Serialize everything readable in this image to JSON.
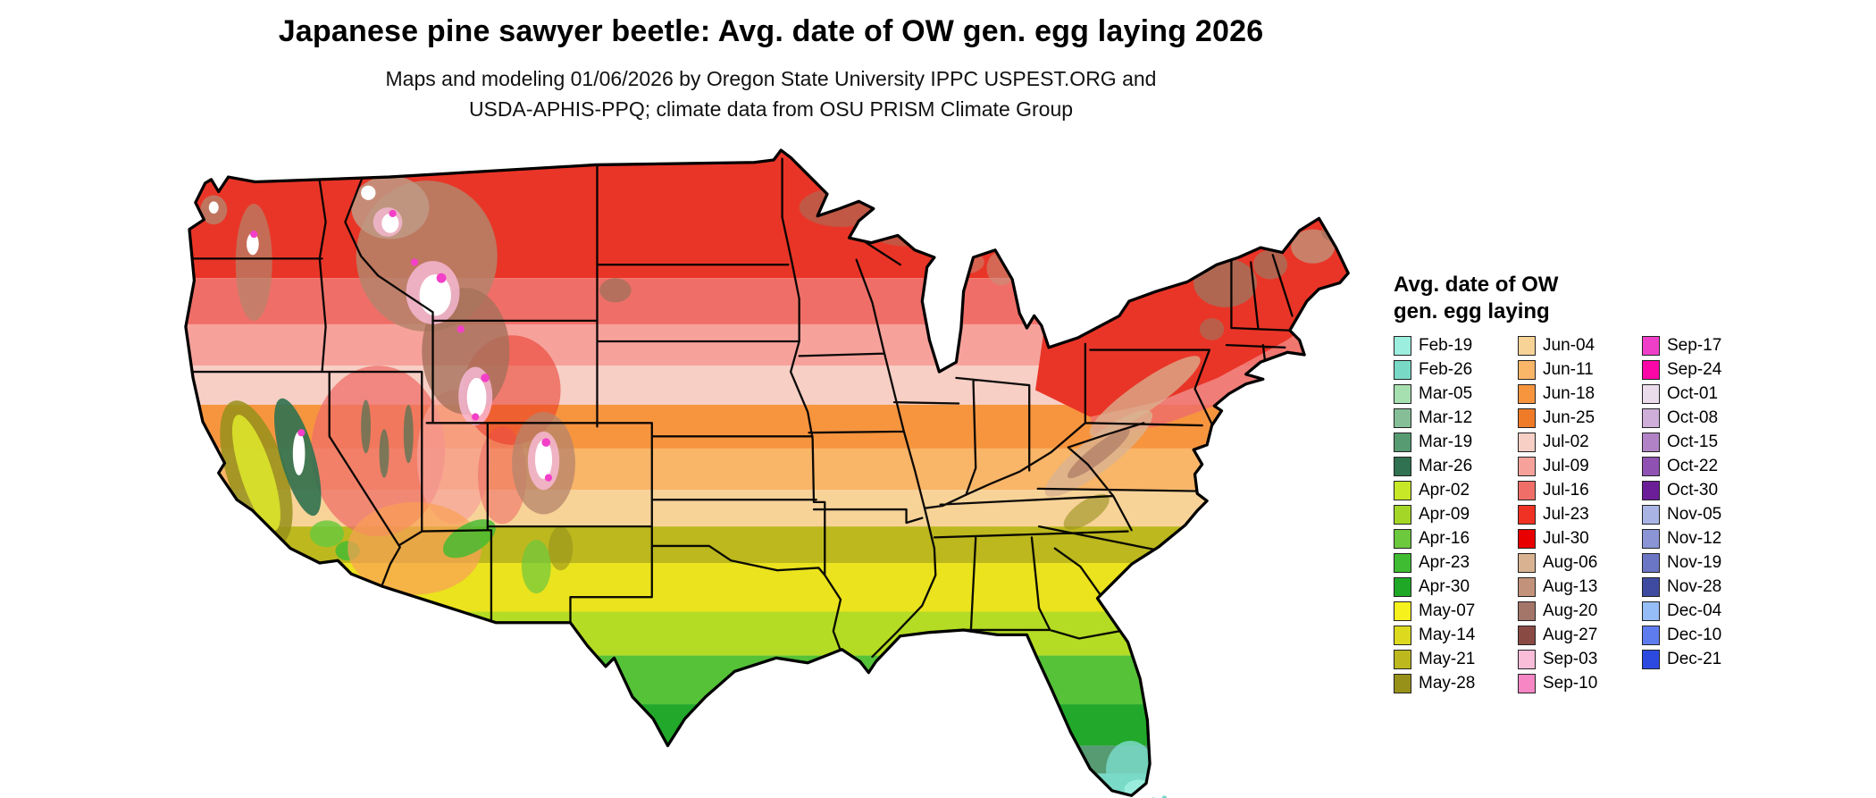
{
  "title": "Japanese pine sawyer beetle: Avg. date of OW gen. egg laying 2026",
  "subtitle_line1": "Maps and modeling 01/06/2026 by Oregon State University IPPC USPEST.ORG and",
  "subtitle_line2": "USDA-APHIS-PPQ; climate data from OSU PRISM Climate Group",
  "legend": {
    "title_line1": "Avg. date of OW",
    "title_line2": "gen. egg laying",
    "columns": [
      {
        "entries": [
          {
            "label": "Feb-19",
            "color": "#9ceede"
          },
          {
            "label": "Feb-26",
            "color": "#79d9c7"
          },
          {
            "label": "Mar-05",
            "color": "#a7e0b0"
          },
          {
            "label": "Mar-12",
            "color": "#86bf97"
          },
          {
            "label": "Mar-19",
            "color": "#569b72"
          },
          {
            "label": "Mar-26",
            "color": "#2f7150"
          },
          {
            "label": "Apr-02",
            "color": "#c6e827"
          },
          {
            "label": "Apr-09",
            "color": "#a3d626"
          },
          {
            "label": "Apr-16",
            "color": "#6cc83c"
          },
          {
            "label": "Apr-23",
            "color": "#3fbc31"
          },
          {
            "label": "Apr-30",
            "color": "#1fa826"
          },
          {
            "label": "May-07",
            "color": "#f6f11c"
          },
          {
            "label": "May-14",
            "color": "#dcd91f"
          },
          {
            "label": "May-21",
            "color": "#bcb81e"
          },
          {
            "label": "May-28",
            "color": "#97911a"
          }
        ]
      },
      {
        "entries": [
          {
            "label": "Jun-04",
            "color": "#f8d398"
          },
          {
            "label": "Jun-11",
            "color": "#f9b568"
          },
          {
            "label": "Jun-18",
            "color": "#f7953f"
          },
          {
            "label": "Jun-25",
            "color": "#ef7b28"
          },
          {
            "label": "Jul-02",
            "color": "#f7cfc5"
          },
          {
            "label": "Jul-09",
            "color": "#f6a29b"
          },
          {
            "label": "Jul-16",
            "color": "#ef6f68"
          },
          {
            "label": "Jul-23",
            "color": "#f03224"
          },
          {
            "label": "Jul-30",
            "color": "#e80000"
          },
          {
            "label": "Aug-06",
            "color": "#d9b391"
          },
          {
            "label": "Aug-13",
            "color": "#c2927a"
          },
          {
            "label": "Aug-20",
            "color": "#a4766a"
          },
          {
            "label": "Aug-27",
            "color": "#8a4a44"
          },
          {
            "label": "Sep-03",
            "color": "#f9bcd9"
          },
          {
            "label": "Sep-10",
            "color": "#f787c4"
          }
        ]
      },
      {
        "entries": [
          {
            "label": "Sep-17",
            "color": "#ef3fc8"
          },
          {
            "label": "Sep-24",
            "color": "#fb06a7"
          },
          {
            "label": "Oct-01",
            "color": "#eadcea"
          },
          {
            "label": "Oct-08",
            "color": "#cfaed9"
          },
          {
            "label": "Oct-15",
            "color": "#b183c6"
          },
          {
            "label": "Oct-22",
            "color": "#8f52b2"
          },
          {
            "label": "Oct-30",
            "color": "#6c1e98"
          },
          {
            "label": "Nov-05",
            "color": "#a9b4e4"
          },
          {
            "label": "Nov-12",
            "color": "#8b95d6"
          },
          {
            "label": "Nov-19",
            "color": "#6b76c4"
          },
          {
            "label": "Nov-28",
            "color": "#3f4ba0"
          },
          {
            "label": "Dec-04",
            "color": "#95bdf7"
          },
          {
            "label": "Dec-10",
            "color": "#5f7cef"
          },
          {
            "label": "Dec-21",
            "color": "#2c4ae0"
          }
        ]
      }
    ]
  }
}
